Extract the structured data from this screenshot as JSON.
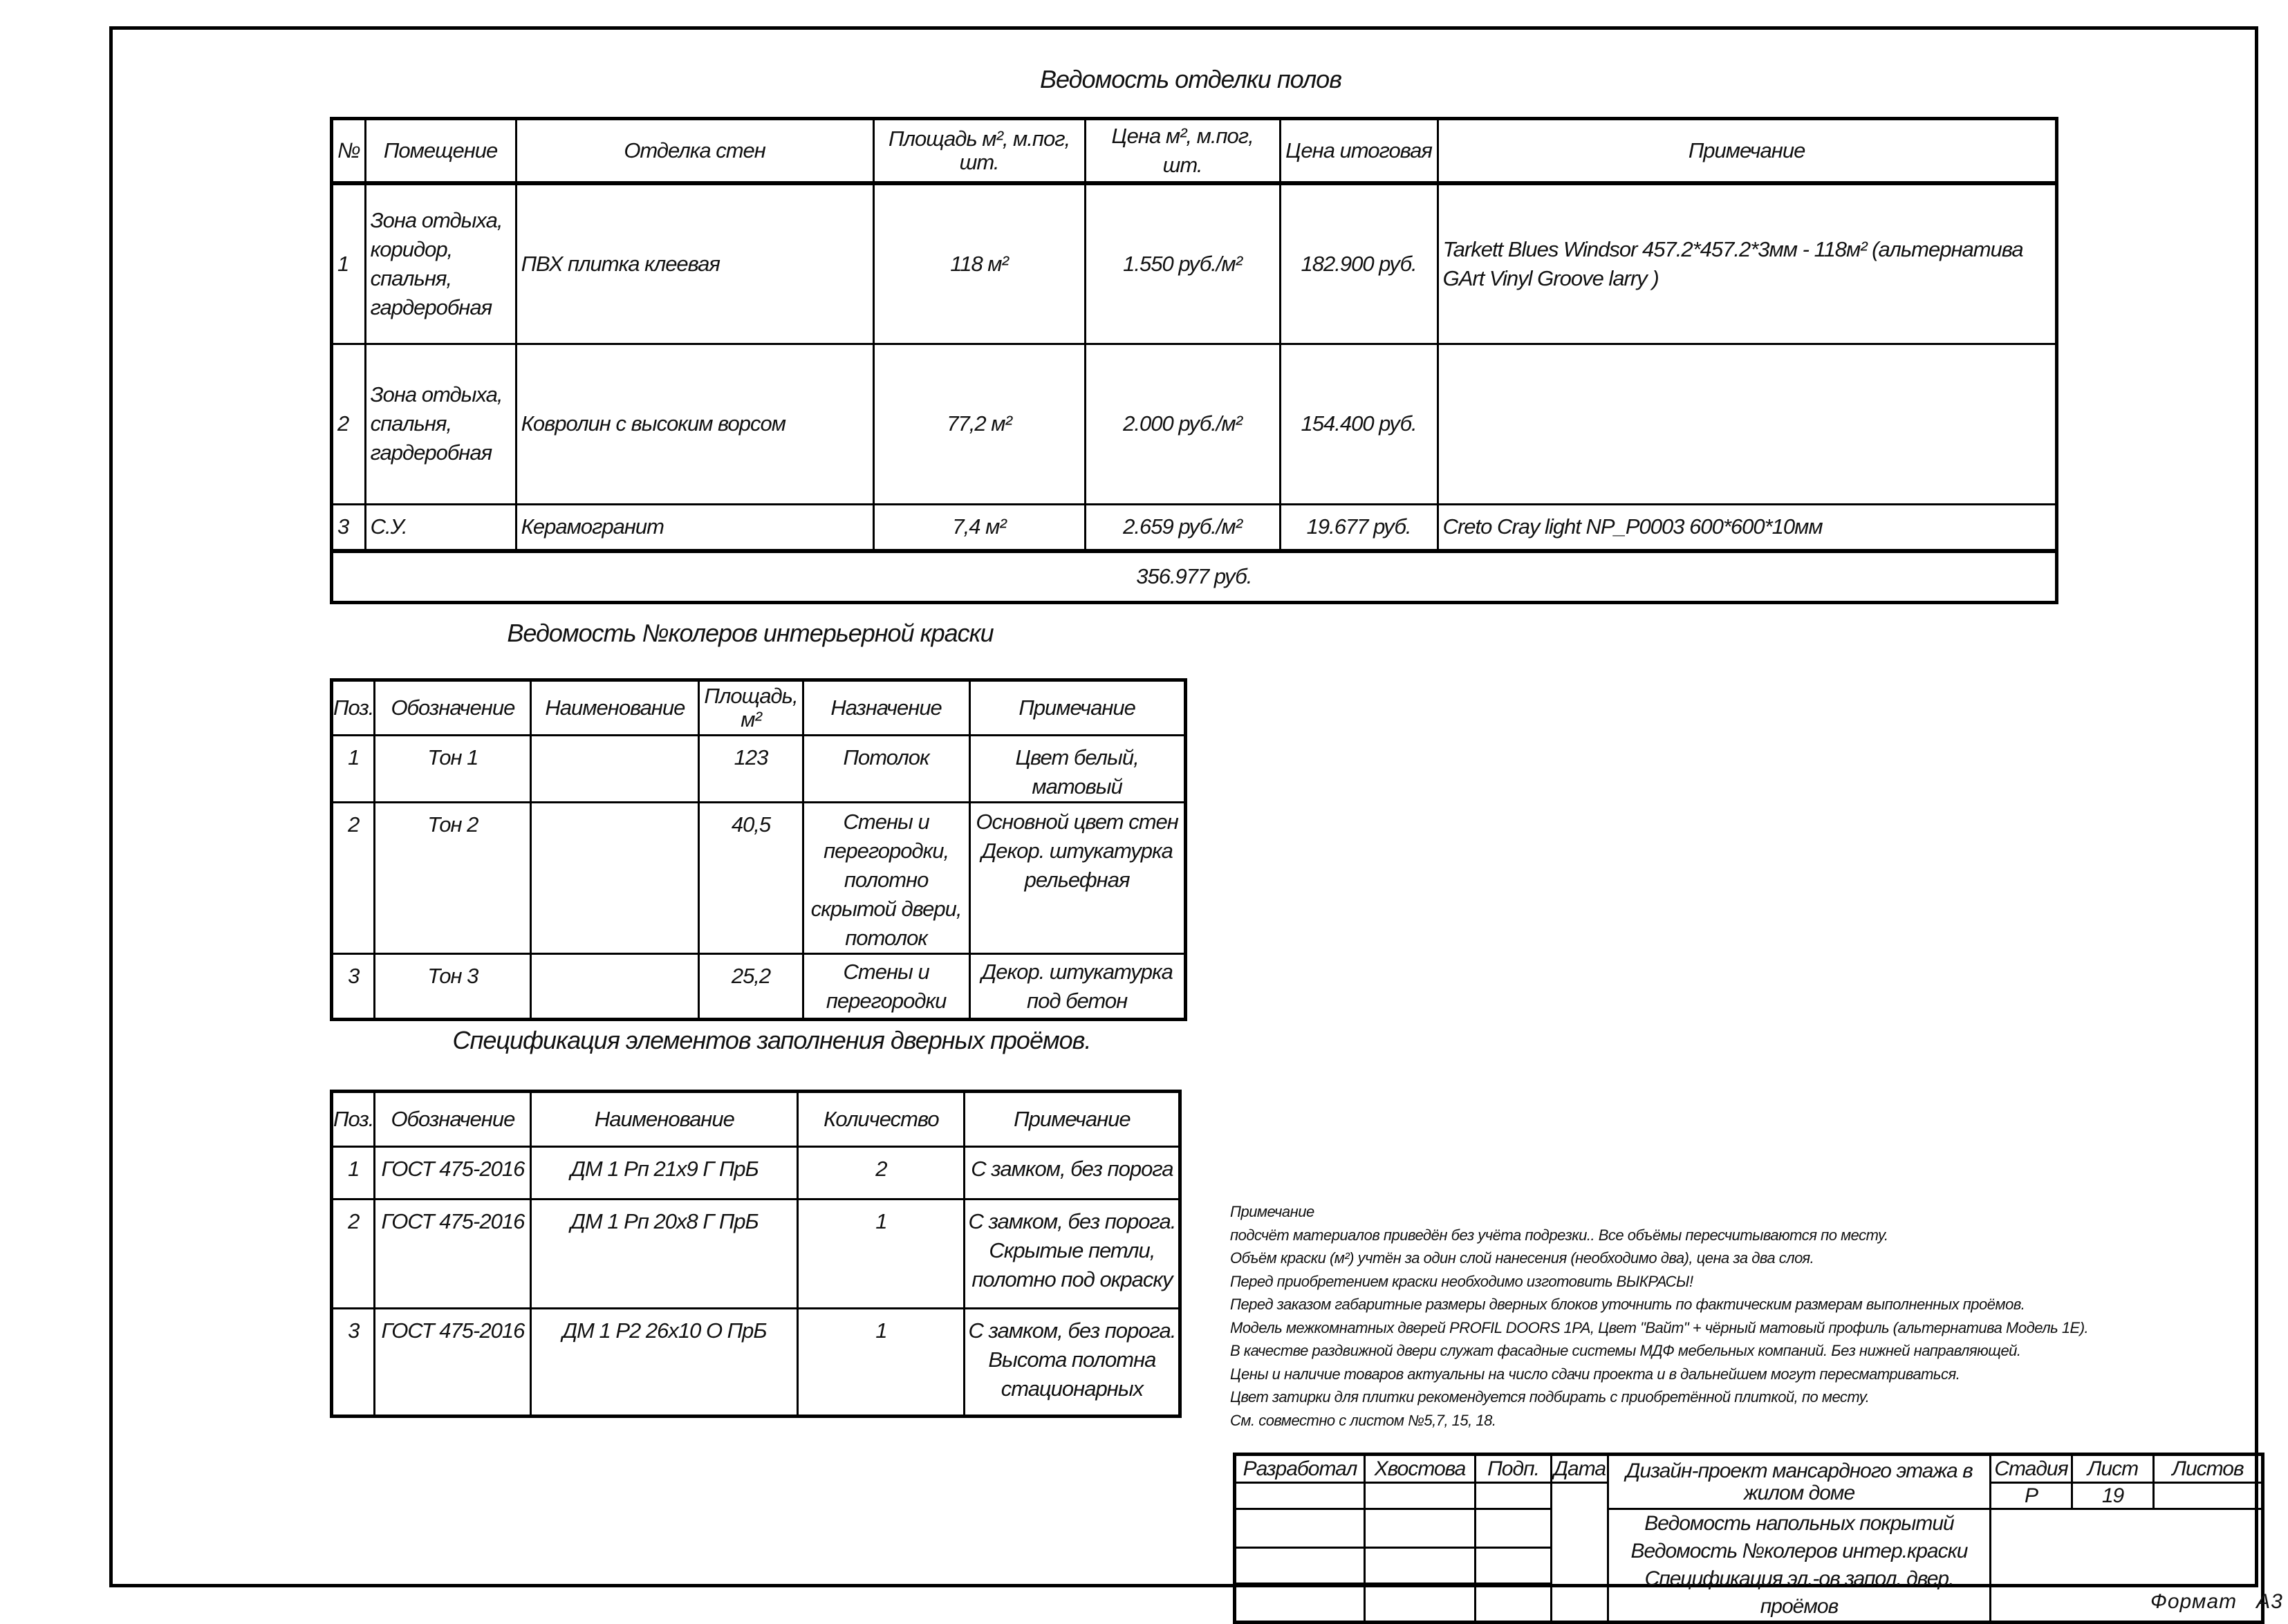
{
  "floors": {
    "title": "Ведомость отделки полов",
    "headers": [
      "№",
      "Помещение",
      "Отделка стен",
      "Площадь м², м.пог, шт.",
      "Цена м², м.пог, шт.",
      "Цена итоговая",
      "Примечание"
    ],
    "rows": [
      [
        "1",
        "Зона отдыха, коридор, спальня, гардеробная",
        "ПВХ плитка клеевая",
        "118 м²",
        "1.550 руб./м²",
        "182.900 руб.",
        "Tarkett Blues Windsor 457.2*457.2*3мм - 118м² (альтернатива GArt Vinyl Groove larry )"
      ],
      [
        "2",
        "Зона отдыха, спальня, гардеробная",
        "Ковролин с высоким ворсом",
        "77,2 м²",
        "2.000 руб./м²",
        "154.400 руб.",
        ""
      ],
      [
        "3",
        "С.У.",
        "Керамогранит",
        "7,4 м²",
        "2.659 руб./м²",
        "19.677 руб.",
        "Creto Cray light  NP_P0003  600*600*10мм"
      ]
    ],
    "total": "356.977 руб."
  },
  "paints": {
    "title": "Ведомость №колеров интерьерной краски",
    "headers": [
      "Поз.",
      "Обозначение",
      "Наименование",
      "Площадь, м²",
      "Назначение",
      "Примечание"
    ],
    "rows": [
      [
        "1",
        "Тон 1",
        "",
        "123",
        "Потолок",
        "Цвет белый, матовый"
      ],
      [
        "2",
        "Тон 2",
        "",
        "40,5",
        "Стены и перегородки, полотно скрытой двери, потолок",
        "Основной цвет стен Декор. штукатурка рельефная"
      ],
      [
        "3",
        "Тон 3",
        "",
        "25,2",
        "Стены и перегородки",
        "Декор. штукатурка под бетон"
      ]
    ]
  },
  "doors": {
    "title": "Спецификация элементов заполнения дверных проёмов.",
    "headers": [
      "Поз.",
      "Обозначение",
      "Наименование",
      "Количество",
      "Примечание"
    ],
    "rows": [
      [
        "1",
        "ГОСТ 475-2016",
        "ДМ 1 Рп 21х9 Г ПрБ",
        "2",
        "С  замком, без порога"
      ],
      [
        "2",
        "ГОСТ 475-2016",
        "ДМ 1 Рп 20х8 Г ПрБ",
        "1",
        "С  замком, без порога. Скрытые петли, полотно под окраску"
      ],
      [
        "3",
        "ГОСТ 475-2016",
        "ДМ 1 Р2 26х10  О ПрБ",
        "1",
        "С  замком, без порога. Высота полотна стационарных"
      ]
    ]
  },
  "notes": [
    "Примечание",
    "подсчёт материалов приведён без учёта подрезки.. Все объёмы пересчитываются по месту.",
    "Объём краски (м²) учтён за один слой нанесения (необходимо два), цена за два слоя.",
    "Перед приобретением краски необходимо изготовить ВЫКРАСЫ!",
    "Перед заказом габаритные размеры дверных блоков уточнить по фактическим размерам выполненных проёмов.",
    "Модель межкомнатных дверей PROFIL DOORS 1PA, Цвет \"Вайт\" + чёрный матовый профиль (альтернатива Модель 1E).",
    "В качестве раздвижной двери служат фасадные системы МДФ мебельных компаний. Без нижней направляющей.",
    "Цены и наличие товаров актуальны на число сдачи проекта и в дальнейшем могут пересматриваться.",
    "Цвет затирки для плитки рекомендуется подбирать с приобретённой плиткой, по месту.",
    "См. совместно с листом №5,7, 15, 18."
  ],
  "title_block": {
    "developed_label": "Разработал",
    "developer": "Хвостова",
    "sign_label": "Подп.",
    "date_label": "Дата",
    "project": "Дизайн-проект мансардного этажа в жилом доме",
    "stage_label": "Стадия",
    "sheet_label": "Лист",
    "sheets_label": "Листов",
    "stage": "Р",
    "sheet": "19",
    "sheet_titles": [
      "Ведомость напольных покрытий",
      "Ведомость №колеров интер.краски",
      "Спецификация эл.-ов запол. двер. проёмов"
    ]
  },
  "format": "Формат   А3"
}
